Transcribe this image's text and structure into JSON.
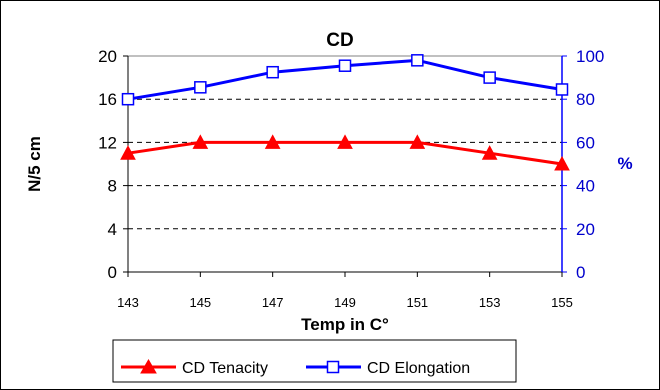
{
  "chart_data": {
    "type": "line",
    "title": "CD",
    "xlabel": "Temp in C°",
    "ylabel": "N/5 cm",
    "y2label": "%",
    "x": [
      143,
      145,
      147,
      149,
      151,
      153,
      155
    ],
    "x_tick_labels": [
      "143",
      "145",
      "147",
      "149",
      "151",
      "153",
      "155"
    ],
    "ylim": [
      0,
      20
    ],
    "y_ticks": [
      "0",
      "4",
      "8",
      "12",
      "16",
      "20"
    ],
    "y2lim": [
      0,
      100
    ],
    "y2_ticks": [
      "0",
      "20",
      "40",
      "60",
      "80",
      "100"
    ],
    "grid": "horizontal dashed",
    "legend_position": "bottom",
    "series": [
      {
        "name": "CD Tenacity",
        "axis": "left",
        "color": "#ff0000",
        "marker": "filled-triangle",
        "values": [
          11,
          12,
          12,
          12,
          12,
          11,
          10
        ]
      },
      {
        "name": "CD Elongation",
        "axis": "right",
        "color": "#0000ff",
        "marker": "hollow-square",
        "values": [
          80,
          85.5,
          92.5,
          95.5,
          98,
          90,
          84.5
        ]
      }
    ]
  }
}
